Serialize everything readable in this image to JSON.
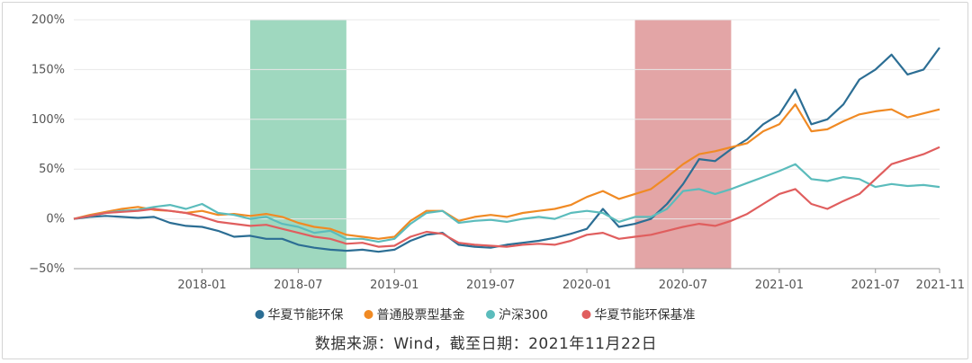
{
  "chart_data": {
    "type": "line",
    "title": "",
    "xlabel": "",
    "ylabel": "",
    "x_start": "2017-05",
    "x_end": "2021-11",
    "x_ticks": [
      "2018-01",
      "2018-07",
      "2019-01",
      "2019-07",
      "2020-01",
      "2020-07",
      "2021-01",
      "2021-07",
      "2021-11"
    ],
    "y_ticks": [
      "200%",
      "150%",
      "100%",
      "50%",
      "0%",
      "−50%"
    ],
    "ylim": [
      -50,
      200
    ],
    "grid": "horizontal",
    "legend_position": "bottom",
    "shaded_periods": [
      {
        "start": "2018-04",
        "end": "2018-10",
        "color": "#9fd8bf"
      },
      {
        "start": "2020-04",
        "end": "2020-10",
        "color": "#e3a5a6"
      }
    ],
    "series": [
      {
        "name": "华夏节能环保",
        "color": "#2c6e94",
        "points": [
          [
            "2017-05",
            0
          ],
          [
            "2017-06",
            2
          ],
          [
            "2017-07",
            3
          ],
          [
            "2017-08",
            2
          ],
          [
            "2017-09",
            1
          ],
          [
            "2017-10",
            2
          ],
          [
            "2017-11",
            -4
          ],
          [
            "2017-12",
            -7
          ],
          [
            "2018-01",
            -8
          ],
          [
            "2018-02",
            -12
          ],
          [
            "2018-03",
            -18
          ],
          [
            "2018-04",
            -17
          ],
          [
            "2018-05",
            -20
          ],
          [
            "2018-06",
            -20
          ],
          [
            "2018-07",
            -26
          ],
          [
            "2018-08",
            -29
          ],
          [
            "2018-09",
            -31
          ],
          [
            "2018-10",
            -32
          ],
          [
            "2018-11",
            -31
          ],
          [
            "2018-12",
            -33
          ],
          [
            "2019-01",
            -31
          ],
          [
            "2019-02",
            -22
          ],
          [
            "2019-03",
            -16
          ],
          [
            "2019-04",
            -14
          ],
          [
            "2019-05",
            -26
          ],
          [
            "2019-06",
            -28
          ],
          [
            "2019-07",
            -29
          ],
          [
            "2019-08",
            -26
          ],
          [
            "2019-09",
            -24
          ],
          [
            "2019-10",
            -22
          ],
          [
            "2019-11",
            -19
          ],
          [
            "2019-12",
            -15
          ],
          [
            "2020-01",
            -10
          ],
          [
            "2020-02",
            10
          ],
          [
            "2020-03",
            -8
          ],
          [
            "2020-04",
            -5
          ],
          [
            "2020-05",
            0
          ],
          [
            "2020-06",
            15
          ],
          [
            "2020-07",
            35
          ],
          [
            "2020-08",
            60
          ],
          [
            "2020-09",
            58
          ],
          [
            "2020-10",
            70
          ],
          [
            "2020-11",
            80
          ],
          [
            "2020-12",
            95
          ],
          [
            "2021-01",
            105
          ],
          [
            "2021-02",
            130
          ],
          [
            "2021-03",
            95
          ],
          [
            "2021-04",
            100
          ],
          [
            "2021-05",
            115
          ],
          [
            "2021-06",
            140
          ],
          [
            "2021-07",
            150
          ],
          [
            "2021-08",
            165
          ],
          [
            "2021-09",
            145
          ],
          [
            "2021-10",
            150
          ],
          [
            "2021-11",
            172
          ]
        ]
      },
      {
        "name": "普通股票型基金",
        "color": "#f08a24",
        "points": [
          [
            "2017-05",
            0
          ],
          [
            "2017-06",
            4
          ],
          [
            "2017-07",
            7
          ],
          [
            "2017-08",
            10
          ],
          [
            "2017-09",
            12
          ],
          [
            "2017-10",
            9
          ],
          [
            "2017-11",
            8
          ],
          [
            "2017-12",
            6
          ],
          [
            "2018-01",
            8
          ],
          [
            "2018-02",
            4
          ],
          [
            "2018-03",
            5
          ],
          [
            "2018-04",
            3
          ],
          [
            "2018-05",
            5
          ],
          [
            "2018-06",
            2
          ],
          [
            "2018-07",
            -4
          ],
          [
            "2018-08",
            -8
          ],
          [
            "2018-09",
            -10
          ],
          [
            "2018-10",
            -16
          ],
          [
            "2018-11",
            -18
          ],
          [
            "2018-12",
            -20
          ],
          [
            "2019-01",
            -18
          ],
          [
            "2019-02",
            -2
          ],
          [
            "2019-03",
            8
          ],
          [
            "2019-04",
            8
          ],
          [
            "2019-05",
            -2
          ],
          [
            "2019-06",
            2
          ],
          [
            "2019-07",
            4
          ],
          [
            "2019-08",
            2
          ],
          [
            "2019-09",
            6
          ],
          [
            "2019-10",
            8
          ],
          [
            "2019-11",
            10
          ],
          [
            "2019-12",
            14
          ],
          [
            "2020-01",
            22
          ],
          [
            "2020-02",
            28
          ],
          [
            "2020-03",
            20
          ],
          [
            "2020-04",
            25
          ],
          [
            "2020-05",
            30
          ],
          [
            "2020-06",
            42
          ],
          [
            "2020-07",
            55
          ],
          [
            "2020-08",
            65
          ],
          [
            "2020-09",
            68
          ],
          [
            "2020-10",
            72
          ],
          [
            "2020-11",
            76
          ],
          [
            "2020-12",
            88
          ],
          [
            "2021-01",
            95
          ],
          [
            "2021-02",
            115
          ],
          [
            "2021-03",
            88
          ],
          [
            "2021-04",
            90
          ],
          [
            "2021-05",
            98
          ],
          [
            "2021-06",
            105
          ],
          [
            "2021-07",
            108
          ],
          [
            "2021-08",
            110
          ],
          [
            "2021-09",
            102
          ],
          [
            "2021-10",
            106
          ],
          [
            "2021-11",
            110
          ]
        ]
      },
      {
        "name": "沪深300",
        "color": "#5bbcbc",
        "points": [
          [
            "2017-05",
            0
          ],
          [
            "2017-06",
            3
          ],
          [
            "2017-07",
            6
          ],
          [
            "2017-08",
            8
          ],
          [
            "2017-09",
            9
          ],
          [
            "2017-10",
            12
          ],
          [
            "2017-11",
            14
          ],
          [
            "2017-12",
            10
          ],
          [
            "2018-01",
            15
          ],
          [
            "2018-02",
            6
          ],
          [
            "2018-03",
            4
          ],
          [
            "2018-04",
            0
          ],
          [
            "2018-05",
            2
          ],
          [
            "2018-06",
            -5
          ],
          [
            "2018-07",
            -8
          ],
          [
            "2018-08",
            -14
          ],
          [
            "2018-09",
            -12
          ],
          [
            "2018-10",
            -20
          ],
          [
            "2018-11",
            -20
          ],
          [
            "2018-12",
            -23
          ],
          [
            "2019-01",
            -20
          ],
          [
            "2019-02",
            -5
          ],
          [
            "2019-03",
            6
          ],
          [
            "2019-04",
            8
          ],
          [
            "2019-05",
            -4
          ],
          [
            "2019-06",
            -2
          ],
          [
            "2019-07",
            -1
          ],
          [
            "2019-08",
            -3
          ],
          [
            "2019-09",
            0
          ],
          [
            "2019-10",
            2
          ],
          [
            "2019-11",
            0
          ],
          [
            "2019-12",
            6
          ],
          [
            "2020-01",
            8
          ],
          [
            "2020-02",
            6
          ],
          [
            "2020-03",
            -3
          ],
          [
            "2020-04",
            2
          ],
          [
            "2020-05",
            2
          ],
          [
            "2020-06",
            10
          ],
          [
            "2020-07",
            28
          ],
          [
            "2020-08",
            30
          ],
          [
            "2020-09",
            25
          ],
          [
            "2020-10",
            30
          ],
          [
            "2020-11",
            36
          ],
          [
            "2020-12",
            42
          ],
          [
            "2021-01",
            48
          ],
          [
            "2021-02",
            55
          ],
          [
            "2021-03",
            40
          ],
          [
            "2021-04",
            38
          ],
          [
            "2021-05",
            42
          ],
          [
            "2021-06",
            40
          ],
          [
            "2021-07",
            32
          ],
          [
            "2021-08",
            35
          ],
          [
            "2021-09",
            33
          ],
          [
            "2021-10",
            34
          ],
          [
            "2021-11",
            32
          ]
        ]
      },
      {
        "name": "华夏节能环保基准",
        "color": "#e05e5e",
        "points": [
          [
            "2017-05",
            0
          ],
          [
            "2017-06",
            3
          ],
          [
            "2017-07",
            6
          ],
          [
            "2017-08",
            7
          ],
          [
            "2017-09",
            8
          ],
          [
            "2017-10",
            10
          ],
          [
            "2017-11",
            8
          ],
          [
            "2017-12",
            6
          ],
          [
            "2018-01",
            2
          ],
          [
            "2018-02",
            -3
          ],
          [
            "2018-03",
            -5
          ],
          [
            "2018-04",
            -7
          ],
          [
            "2018-05",
            -6
          ],
          [
            "2018-06",
            -10
          ],
          [
            "2018-07",
            -14
          ],
          [
            "2018-08",
            -18
          ],
          [
            "2018-09",
            -20
          ],
          [
            "2018-10",
            -25
          ],
          [
            "2018-11",
            -24
          ],
          [
            "2018-12",
            -28
          ],
          [
            "2019-01",
            -27
          ],
          [
            "2019-02",
            -18
          ],
          [
            "2019-03",
            -13
          ],
          [
            "2019-04",
            -15
          ],
          [
            "2019-05",
            -24
          ],
          [
            "2019-06",
            -26
          ],
          [
            "2019-07",
            -27
          ],
          [
            "2019-08",
            -28
          ],
          [
            "2019-09",
            -26
          ],
          [
            "2019-10",
            -25
          ],
          [
            "2019-11",
            -26
          ],
          [
            "2019-12",
            -22
          ],
          [
            "2020-01",
            -16
          ],
          [
            "2020-02",
            -14
          ],
          [
            "2020-03",
            -20
          ],
          [
            "2020-04",
            -18
          ],
          [
            "2020-05",
            -16
          ],
          [
            "2020-06",
            -12
          ],
          [
            "2020-07",
            -8
          ],
          [
            "2020-08",
            -5
          ],
          [
            "2020-09",
            -7
          ],
          [
            "2020-10",
            -2
          ],
          [
            "2020-11",
            5
          ],
          [
            "2020-12",
            15
          ],
          [
            "2021-01",
            25
          ],
          [
            "2021-02",
            30
          ],
          [
            "2021-03",
            15
          ],
          [
            "2021-04",
            10
          ],
          [
            "2021-05",
            18
          ],
          [
            "2021-06",
            25
          ],
          [
            "2021-07",
            40
          ],
          [
            "2021-08",
            55
          ],
          [
            "2021-09",
            60
          ],
          [
            "2021-10",
            65
          ],
          [
            "2021-11",
            72
          ]
        ]
      }
    ]
  },
  "source_text": "数据来源：Wind，截至日期：2021年11月22日"
}
